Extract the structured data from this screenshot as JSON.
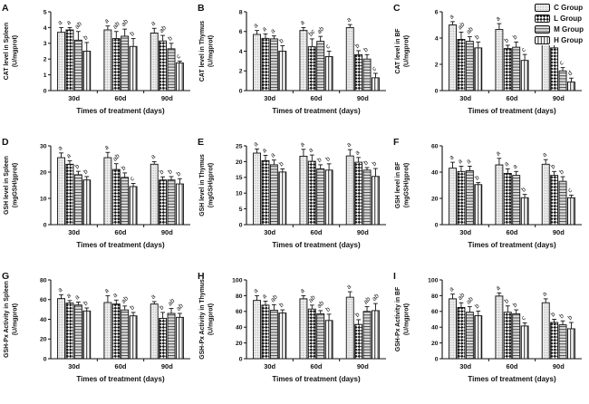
{
  "legend": {
    "items": [
      {
        "label": "C Group",
        "pattern": "dots"
      },
      {
        "label": "L Group",
        "pattern": "checker"
      },
      {
        "label": "M Group",
        "pattern": "hlines"
      },
      {
        "label": "H Group",
        "pattern": "vlines"
      }
    ]
  },
  "chart_data": [
    {
      "panel": "A",
      "type": "bar",
      "ylabel": "CAT level in Spleen",
      "yunits": "(U/mgprot)",
      "xlabel": "Times of treatment (days)",
      "categories": [
        "30d",
        "60d",
        "90d"
      ],
      "ylim": [
        0,
        5
      ],
      "ytick_step": 1,
      "series": [
        {
          "name": "C Group",
          "values": [
            3.7,
            3.85,
            3.65
          ],
          "errors": [
            0.3,
            0.25,
            0.3
          ],
          "sig": [
            "a",
            "a",
            "a"
          ]
        },
        {
          "name": "L Group",
          "values": [
            3.85,
            3.3,
            3.15
          ],
          "errors": [
            0.15,
            0.45,
            0.35
          ],
          "sig": [
            "a",
            "ab",
            "ab"
          ]
        },
        {
          "name": "M Group",
          "values": [
            3.2,
            3.45,
            2.65
          ],
          "errors": [
            0.55,
            0.45,
            0.35
          ],
          "sig": [
            "ab",
            "ab",
            "b"
          ]
        },
        {
          "name": "H Group",
          "values": [
            2.5,
            2.8,
            1.75
          ],
          "errors": [
            0.55,
            0.5,
            0.12
          ],
          "sig": [
            "b",
            "b",
            "c"
          ]
        }
      ]
    },
    {
      "panel": "B",
      "type": "bar",
      "ylabel": "CAT level in Thymus",
      "yunits": "(U/mgprot)",
      "xlabel": "Times of treatment (days)",
      "categories": [
        "30d",
        "60d",
        "90d"
      ],
      "ylim": [
        0,
        8
      ],
      "ytick_step": 2,
      "series": [
        {
          "name": "C Group",
          "values": [
            5.7,
            6.1,
            6.4
          ],
          "errors": [
            0.4,
            0.3,
            0.3
          ],
          "sig": [
            "a",
            "a",
            "a"
          ]
        },
        {
          "name": "L Group",
          "values": [
            5.3,
            4.45,
            3.65
          ],
          "errors": [
            0.45,
            0.8,
            0.4
          ],
          "sig": [
            "a",
            "bc",
            "b"
          ]
        },
        {
          "name": "M Group",
          "values": [
            5.25,
            5.0,
            3.2
          ],
          "errors": [
            0.3,
            0.5,
            0.45
          ],
          "sig": [
            "a",
            "ab",
            "b"
          ]
        },
        {
          "name": "H Group",
          "values": [
            4.0,
            3.45,
            1.3
          ],
          "errors": [
            0.55,
            0.55,
            0.45
          ],
          "sig": [
            "b",
            "c",
            "c"
          ]
        }
      ]
    },
    {
      "panel": "C",
      "type": "bar",
      "ylabel": "CAT level in BF",
      "yunits": "(U/mgprot)",
      "xlabel": "Times of treatment (days)",
      "categories": [
        "30d",
        "60d",
        "90d"
      ],
      "ylim": [
        0,
        6
      ],
      "ytick_step": 2,
      "series": [
        {
          "name": "C Group",
          "values": [
            5.0,
            4.65,
            4.65
          ],
          "errors": [
            0.25,
            0.45,
            0.3
          ],
          "sig": [
            "a",
            "a",
            "a"
          ]
        },
        {
          "name": "L Group",
          "values": [
            3.9,
            3.2,
            3.25
          ],
          "errors": [
            0.55,
            0.25,
            0.25
          ],
          "sig": [
            "ab",
            "b",
            "b"
          ]
        },
        {
          "name": "M Group",
          "values": [
            3.75,
            3.3,
            1.5
          ],
          "errors": [
            0.35,
            0.4,
            0.25
          ],
          "sig": [
            "ab",
            "b",
            "c"
          ]
        },
        {
          "name": "H Group",
          "values": [
            3.25,
            2.3,
            0.65
          ],
          "errors": [
            0.45,
            0.45,
            0.3
          ],
          "sig": [
            "b",
            "c",
            "d"
          ]
        }
      ]
    },
    {
      "panel": "D",
      "type": "bar",
      "ylabel": "GSH level in Spleen",
      "yunits": "(mgGSH/gprot)",
      "xlabel": "Times of treatment (days)",
      "categories": [
        "30d",
        "60d",
        "90d"
      ],
      "ylim": [
        0,
        30
      ],
      "ytick_step": 10,
      "series": [
        {
          "name": "C Group",
          "values": [
            25.5,
            25.5,
            23.0
          ],
          "errors": [
            1.8,
            2.0,
            1.0
          ],
          "sig": [
            "a",
            "a",
            "a"
          ]
        },
        {
          "name": "L Group",
          "values": [
            23.0,
            21.0,
            17.0
          ],
          "errors": [
            1.3,
            2.2,
            1.2
          ],
          "sig": [
            "a",
            "ab",
            "b"
          ]
        },
        {
          "name": "M Group",
          "values": [
            19.0,
            18.0,
            17.0
          ],
          "errors": [
            1.3,
            1.7,
            1.3
          ],
          "sig": [
            "b",
            "b",
            "b"
          ]
        },
        {
          "name": "H Group",
          "values": [
            17.0,
            14.5,
            15.5
          ],
          "errors": [
            1.3,
            1.2,
            2.0
          ],
          "sig": [
            "b",
            "c",
            "b"
          ]
        }
      ]
    },
    {
      "panel": "E",
      "type": "bar",
      "ylabel": "GSH level in Thymus",
      "yunits": "(mgGSH/gprot)",
      "xlabel": "Times of treatment (days)",
      "categories": [
        "30d",
        "60d",
        "90d"
      ],
      "ylim": [
        0,
        25
      ],
      "ytick_step": 5,
      "series": [
        {
          "name": "C Group",
          "values": [
            22.7,
            21.7,
            21.8
          ],
          "errors": [
            1.3,
            2.2,
            2.0
          ],
          "sig": [
            "a",
            "a",
            "a"
          ]
        },
        {
          "name": "L Group",
          "values": [
            20.3,
            20.1,
            19.8
          ],
          "errors": [
            1.7,
            2.0,
            1.5
          ],
          "sig": [
            "a",
            "a",
            "a"
          ]
        },
        {
          "name": "M Group",
          "values": [
            19.0,
            17.7,
            17.3
          ],
          "errors": [
            1.5,
            1.3,
            0.8
          ],
          "sig": [
            "a",
            "b",
            "b"
          ]
        },
        {
          "name": "H Group",
          "values": [
            16.7,
            17.3,
            15.3
          ],
          "errors": [
            1.0,
            2.0,
            2.5
          ],
          "sig": [
            "b",
            "b",
            "b"
          ]
        }
      ]
    },
    {
      "panel": "F",
      "type": "bar",
      "ylabel": "GSH level in BF",
      "yunits": "(mgGSH/gprot)",
      "xlabel": "Times of treatment (days)",
      "categories": [
        "30d",
        "60d",
        "90d"
      ],
      "ylim": [
        0,
        60
      ],
      "ytick_step": 20,
      "series": [
        {
          "name": "C Group",
          "values": [
            43.0,
            45.5,
            46.0
          ],
          "errors": [
            4.5,
            5.0,
            3.5
          ],
          "sig": [
            "a",
            "a",
            "a"
          ]
        },
        {
          "name": "L Group",
          "values": [
            40.5,
            39.0,
            37.5
          ],
          "errors": [
            4.0,
            3.5,
            3.0
          ],
          "sig": [
            "a",
            "a",
            "b"
          ]
        },
        {
          "name": "M Group",
          "values": [
            41.0,
            37.5,
            33.0
          ],
          "errors": [
            3.5,
            3.0,
            3.5
          ],
          "sig": [
            "a",
            "a",
            "b"
          ]
        },
        {
          "name": "H Group",
          "values": [
            30.5,
            20.5,
            20.5
          ],
          "errors": [
            1.5,
            2.5,
            2.0
          ],
          "sig": [
            "b",
            "b",
            "c"
          ]
        }
      ]
    },
    {
      "panel": "G",
      "type": "bar",
      "ylabel": "GSH-Px Activity in Spleen",
      "yunits": "(U/mgprot)",
      "xlabel": "Times of treatment (days)",
      "categories": [
        "30d",
        "60d",
        "90d"
      ],
      "ylim": [
        0,
        80
      ],
      "ytick_step": 20,
      "series": [
        {
          "name": "C Group",
          "values": [
            61.0,
            57.0,
            55.5
          ],
          "errors": [
            4.0,
            7.0,
            2.5
          ],
          "sig": [
            "a",
            "a",
            "a"
          ]
        },
        {
          "name": "L Group",
          "values": [
            56.5,
            55.5,
            41.0
          ],
          "errors": [
            2.5,
            4.0,
            6.0
          ],
          "sig": [
            "a",
            "a",
            "b"
          ]
        },
        {
          "name": "M Group",
          "values": [
            54.5,
            49.5,
            46.0
          ],
          "errors": [
            3.0,
            4.0,
            5.0
          ],
          "sig": [
            "a",
            "ab",
            "ab"
          ]
        },
        {
          "name": "H Group",
          "values": [
            48.5,
            43.5,
            42.0
          ],
          "errors": [
            3.0,
            3.5,
            4.0
          ],
          "sig": [
            "b",
            "b",
            "ab"
          ]
        }
      ]
    },
    {
      "panel": "H",
      "type": "bar",
      "ylabel": "GSH-Px Activity in Thymus",
      "yunits": "(U/mgprot)",
      "xlabel": "Times of treatment (days)",
      "categories": [
        "30d",
        "60d",
        "90d"
      ],
      "ylim": [
        0,
        100
      ],
      "ytick_step": 20,
      "series": [
        {
          "name": "C Group",
          "values": [
            74.0,
            76.0,
            78.0
          ],
          "errors": [
            6.0,
            4.0,
            7.0
          ],
          "sig": [
            "a",
            "a",
            "a"
          ]
        },
        {
          "name": "L Group",
          "values": [
            68.0,
            63.0,
            43.5
          ],
          "errors": [
            5.0,
            5.0,
            6.0
          ],
          "sig": [
            "a",
            "ab",
            "b"
          ]
        },
        {
          "name": "M Group",
          "values": [
            61.5,
            57.0,
            60.0
          ],
          "errors": [
            7.0,
            4.0,
            6.0
          ],
          "sig": [
            "ab",
            "ab",
            "ab"
          ]
        },
        {
          "name": "H Group",
          "values": [
            58.0,
            48.5,
            61.0
          ],
          "errors": [
            4.0,
            8.0,
            9.0
          ],
          "sig": [
            "b",
            "b",
            "ab"
          ]
        }
      ]
    },
    {
      "panel": "I",
      "type": "bar",
      "ylabel": "GSH-Px Activity in BF",
      "yunits": "(U/mgprot)",
      "xlabel": "Times of treatment (days)",
      "categories": [
        "30d",
        "60d",
        "90d"
      ],
      "ylim": [
        0,
        100
      ],
      "ytick_step": 20,
      "series": [
        {
          "name": "C Group",
          "values": [
            76.0,
            79.5,
            71.0
          ],
          "errors": [
            6.0,
            4.0,
            5.0
          ],
          "sig": [
            "a",
            "a",
            "a"
          ]
        },
        {
          "name": "L Group",
          "values": [
            65.0,
            59.0,
            46.0
          ],
          "errors": [
            6.0,
            8.0,
            4.0
          ],
          "sig": [
            "ab",
            "b",
            "b"
          ]
        },
        {
          "name": "M Group",
          "values": [
            59.0,
            57.0,
            43.0
          ],
          "errors": [
            7.0,
            5.0,
            5.0
          ],
          "sig": [
            "ab",
            "b",
            "b"
          ]
        },
        {
          "name": "H Group",
          "values": [
            54.5,
            41.5,
            38.0
          ],
          "errors": [
            6.0,
            4.0,
            8.0
          ],
          "sig": [
            "b",
            "c",
            "b"
          ]
        }
      ]
    }
  ]
}
